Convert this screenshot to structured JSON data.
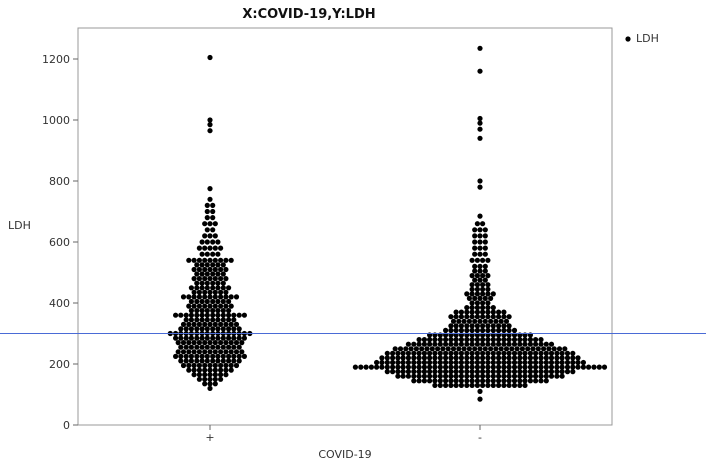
{
  "chart_data": {
    "type": "scatter",
    "title": "X:COVID-19,Y:LDH",
    "xlabel": "COVID-19",
    "ylabel": "LDH",
    "categories": [
      "+",
      "-"
    ],
    "ylim": [
      0,
      1300
    ],
    "yticks": [
      0,
      200,
      400,
      600,
      800,
      1000,
      1200
    ],
    "grid": false,
    "legend": {
      "position": "top-right",
      "entries": [
        "LDH"
      ]
    },
    "reference_line": {
      "y": 300,
      "color": "#4a6bd6"
    },
    "point_color": "#000000",
    "series": [
      {
        "name": "LDH",
        "groups": [
          {
            "category": "+",
            "rows": [
              {
                "y": 120,
                "n": 1
              },
              {
                "y": 135,
                "n": 3
              },
              {
                "y": 150,
                "n": 5
              },
              {
                "y": 165,
                "n": 7
              },
              {
                "y": 180,
                "n": 9
              },
              {
                "y": 195,
                "n": 11
              },
              {
                "y": 210,
                "n": 12
              },
              {
                "y": 225,
                "n": 14
              },
              {
                "y": 240,
                "n": 13
              },
              {
                "y": 255,
                "n": 12
              },
              {
                "y": 270,
                "n": 13
              },
              {
                "y": 285,
                "n": 14
              },
              {
                "y": 300,
                "n": 16
              },
              {
                "y": 315,
                "n": 12
              },
              {
                "y": 330,
                "n": 11
              },
              {
                "y": 345,
                "n": 10
              },
              {
                "y": 360,
                "n": 14
              },
              {
                "y": 375,
                "n": 8
              },
              {
                "y": 390,
                "n": 9
              },
              {
                "y": 405,
                "n": 8
              },
              {
                "y": 420,
                "n": 11
              },
              {
                "y": 435,
                "n": 7
              },
              {
                "y": 450,
                "n": 8
              },
              {
                "y": 465,
                "n": 6
              },
              {
                "y": 480,
                "n": 7
              },
              {
                "y": 495,
                "n": 6
              },
              {
                "y": 510,
                "n": 7
              },
              {
                "y": 525,
                "n": 6
              },
              {
                "y": 540,
                "n": 9
              },
              {
                "y": 560,
                "n": 4
              },
              {
                "y": 580,
                "n": 5
              },
              {
                "y": 600,
                "n": 4
              },
              {
                "y": 620,
                "n": 3
              },
              {
                "y": 640,
                "n": 2
              },
              {
                "y": 660,
                "n": 3
              },
              {
                "y": 680,
                "n": 2
              },
              {
                "y": 700,
                "n": 2
              },
              {
                "y": 720,
                "n": 2
              },
              {
                "y": 740,
                "n": 1
              },
              {
                "y": 775,
                "n": 1
              },
              {
                "y": 965,
                "n": 1
              },
              {
                "y": 985,
                "n": 1
              },
              {
                "y": 1000,
                "n": 1
              },
              {
                "y": 1205,
                "n": 1
              }
            ]
          },
          {
            "category": "-",
            "rows": [
              {
                "y": 85,
                "n": 1
              },
              {
                "y": 110,
                "n": 1
              },
              {
                "y": 130,
                "n": 18
              },
              {
                "y": 145,
                "n": 26
              },
              {
                "y": 160,
                "n": 32
              },
              {
                "y": 175,
                "n": 36
              },
              {
                "y": 190,
                "n": 48
              },
              {
                "y": 205,
                "n": 40
              },
              {
                "y": 220,
                "n": 38
              },
              {
                "y": 235,
                "n": 36
              },
              {
                "y": 250,
                "n": 33
              },
              {
                "y": 265,
                "n": 28
              },
              {
                "y": 280,
                "n": 24
              },
              {
                "y": 295,
                "n": 20
              },
              {
                "y": 310,
                "n": 14
              },
              {
                "y": 325,
                "n": 12
              },
              {
                "y": 340,
                "n": 11
              },
              {
                "y": 355,
                "n": 12
              },
              {
                "y": 370,
                "n": 10
              },
              {
                "y": 385,
                "n": 6
              },
              {
                "y": 400,
                "n": 4
              },
              {
                "y": 415,
                "n": 5
              },
              {
                "y": 430,
                "n": 6
              },
              {
                "y": 445,
                "n": 4
              },
              {
                "y": 460,
                "n": 4
              },
              {
                "y": 475,
                "n": 3
              },
              {
                "y": 490,
                "n": 4
              },
              {
                "y": 505,
                "n": 3
              },
              {
                "y": 520,
                "n": 3
              },
              {
                "y": 540,
                "n": 4
              },
              {
                "y": 560,
                "n": 3
              },
              {
                "y": 580,
                "n": 3
              },
              {
                "y": 600,
                "n": 3
              },
              {
                "y": 620,
                "n": 3
              },
              {
                "y": 640,
                "n": 3
              },
              {
                "y": 660,
                "n": 2
              },
              {
                "y": 685,
                "n": 1
              },
              {
                "y": 780,
                "n": 1
              },
              {
                "y": 800,
                "n": 1
              },
              {
                "y": 940,
                "n": 1
              },
              {
                "y": 970,
                "n": 1
              },
              {
                "y": 990,
                "n": 1
              },
              {
                "y": 1005,
                "n": 1
              },
              {
                "y": 1160,
                "n": 1
              },
              {
                "y": 1235,
                "n": 1
              }
            ]
          }
        ]
      }
    ]
  }
}
